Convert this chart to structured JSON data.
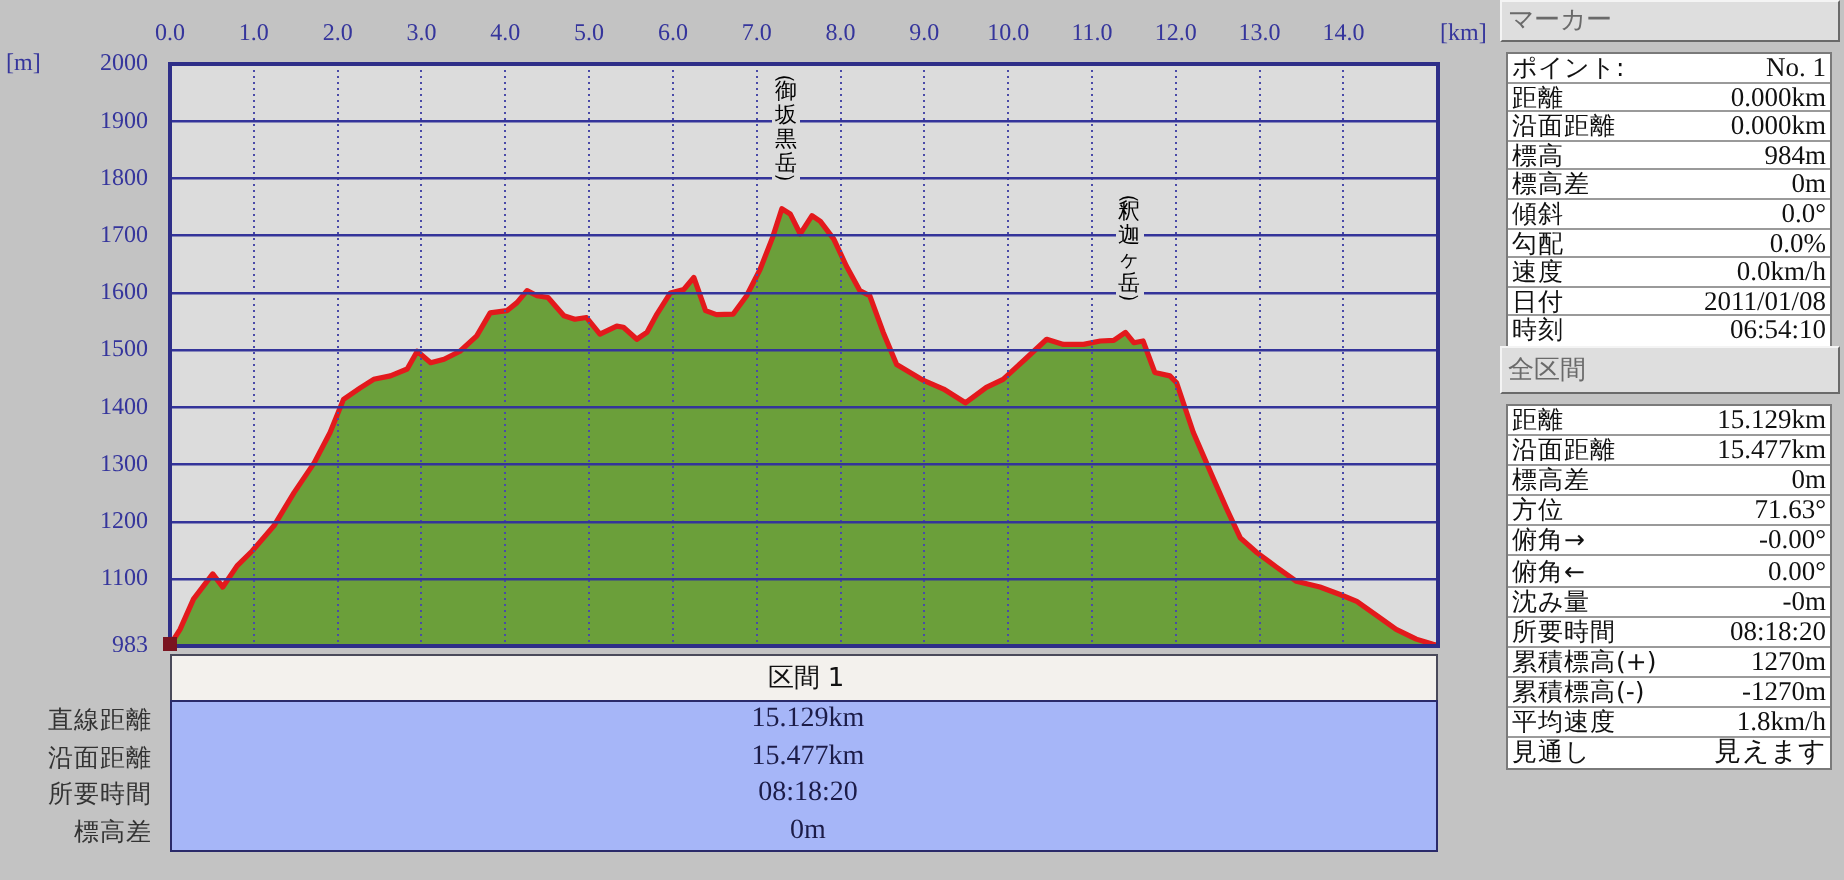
{
  "chart_data": [
    {
      "type": "area",
      "xlabel": "[km]",
      "ylabel": "[m]",
      "x": [
        0,
        0.12,
        0.28,
        0.51,
        0.63,
        0.8,
        0.98,
        1.24,
        1.48,
        1.72,
        1.91,
        2.07,
        2.27,
        2.43,
        2.63,
        2.83,
        2.95,
        3.11,
        3.27,
        3.46,
        3.66,
        3.82,
        4.02,
        4.14,
        4.26,
        4.38,
        4.51,
        4.7,
        4.83,
        4.97,
        5.13,
        5.33,
        5.41,
        5.57,
        5.69,
        5.81,
        5.97,
        6.13,
        6.25,
        6.39,
        6.52,
        6.72,
        6.88,
        7.04,
        7.19,
        7.3,
        7.4,
        7.52,
        7.66,
        7.76,
        7.92,
        8.07,
        8.23,
        8.35,
        8.51,
        8.67,
        8.99,
        9.23,
        9.49,
        9.74,
        9.94,
        10.18,
        10.46,
        10.66,
        10.9,
        11.1,
        11.26,
        11.4,
        11.5,
        11.61,
        11.75,
        11.93,
        12.01,
        12.21,
        12.45,
        12.61,
        12.77,
        12.97,
        13.2,
        13.44,
        13.72,
        13.96,
        14.16,
        14.4,
        14.63,
        14.87,
        15.07,
        15.129
      ],
      "series": [
        {
          "color": "#6b9f3a",
          "values": [
            984,
            1012,
            1065,
            1109,
            1086,
            1123,
            1149,
            1193,
            1251,
            1303,
            1356,
            1414,
            1434,
            1449,
            1455,
            1467,
            1498,
            1478,
            1484,
            1498,
            1525,
            1565,
            1569,
            1583,
            1604,
            1595,
            1592,
            1560,
            1554,
            1557,
            1528,
            1542,
            1540,
            1519,
            1531,
            1563,
            1600,
            1606,
            1627,
            1569,
            1562,
            1563,
            1595,
            1641,
            1697,
            1747,
            1738,
            1703,
            1735,
            1725,
            1694,
            1647,
            1604,
            1595,
            1531,
            1475,
            1447,
            1432,
            1408,
            1435,
            1449,
            1481,
            1519,
            1510,
            1510,
            1516,
            1517,
            1531,
            1513,
            1516,
            1461,
            1455,
            1443,
            1356,
            1275,
            1222,
            1172,
            1146,
            1121,
            1096,
            1086,
            1073,
            1061,
            1036,
            1012,
            995,
            986,
            984
          ]
        }
      ],
      "xlim": [
        0,
        15.129
      ],
      "xticks": [
        {
          "value": 0,
          "label": "0.0"
        },
        {
          "value": 1,
          "label": "1.0"
        },
        {
          "value": 2,
          "label": "2.0"
        },
        {
          "value": 3,
          "label": "3.0"
        },
        {
          "value": 4,
          "label": "4.0"
        },
        {
          "value": 5,
          "label": "5.0"
        },
        {
          "value": 6,
          "label": "6.0"
        },
        {
          "value": 7,
          "label": "7.0"
        },
        {
          "value": 8,
          "label": "8.0"
        },
        {
          "value": 9,
          "label": "9.0"
        },
        {
          "value": 10,
          "label": "10.0"
        },
        {
          "value": 11,
          "label": "11.0"
        },
        {
          "value": 12,
          "label": "12.0"
        },
        {
          "value": 13,
          "label": "13.0"
        },
        {
          "value": 14,
          "label": "14.0"
        }
      ],
      "ylim": [
        983,
        2000
      ],
      "yticks": [
        983,
        1100,
        1200,
        1300,
        1400,
        1500,
        1600,
        1700,
        1800,
        1900,
        2000
      ],
      "grid": true,
      "annotations": [
        {
          "text": "（御坂黒岳）",
          "x": 7.3,
          "y": 1747
        },
        {
          "text": "（釈迦ヶ岳）",
          "x": 11.4,
          "y": 1531
        }
      ]
    },
    {
      "type": "other",
      "title": "区間 1",
      "annotations": [
        "直線距離",
        "15.129km",
        "沿面距離",
        "15.477km",
        "所要時間",
        "08:18:20",
        "標高差",
        "0m"
      ]
    },
    {
      "type": "other",
      "title": "マーカー",
      "annotations": [
        "ポイント:",
        "No. 1",
        "距離",
        "0.000km",
        "沿面距離",
        "0.000km",
        "標高",
        "984m",
        "標高差",
        "0m",
        "傾斜",
        "0.0°",
        "勾配",
        "0.0%",
        "速度",
        "0.0km/h",
        "日付",
        "2011/01/08",
        "時刻",
        "06:54:10"
      ]
    },
    {
      "type": "other",
      "title": "全区間",
      "annotations": [
        "距離",
        "15.129km",
        "沿面距離",
        "15.477km",
        "標高差",
        "0m",
        "方位",
        "71.63°",
        "俯角→",
        "-0.00°",
        "俯角←",
        "0.00°",
        "沈み量",
        "-0m",
        "所要時間",
        "08:18:20",
        "累積標高(+)",
        "1270m",
        "累積標高(-)",
        "-1270m",
        "平均速度",
        "1.8km/h",
        "見通し",
        "見えます"
      ]
    }
  ]
}
